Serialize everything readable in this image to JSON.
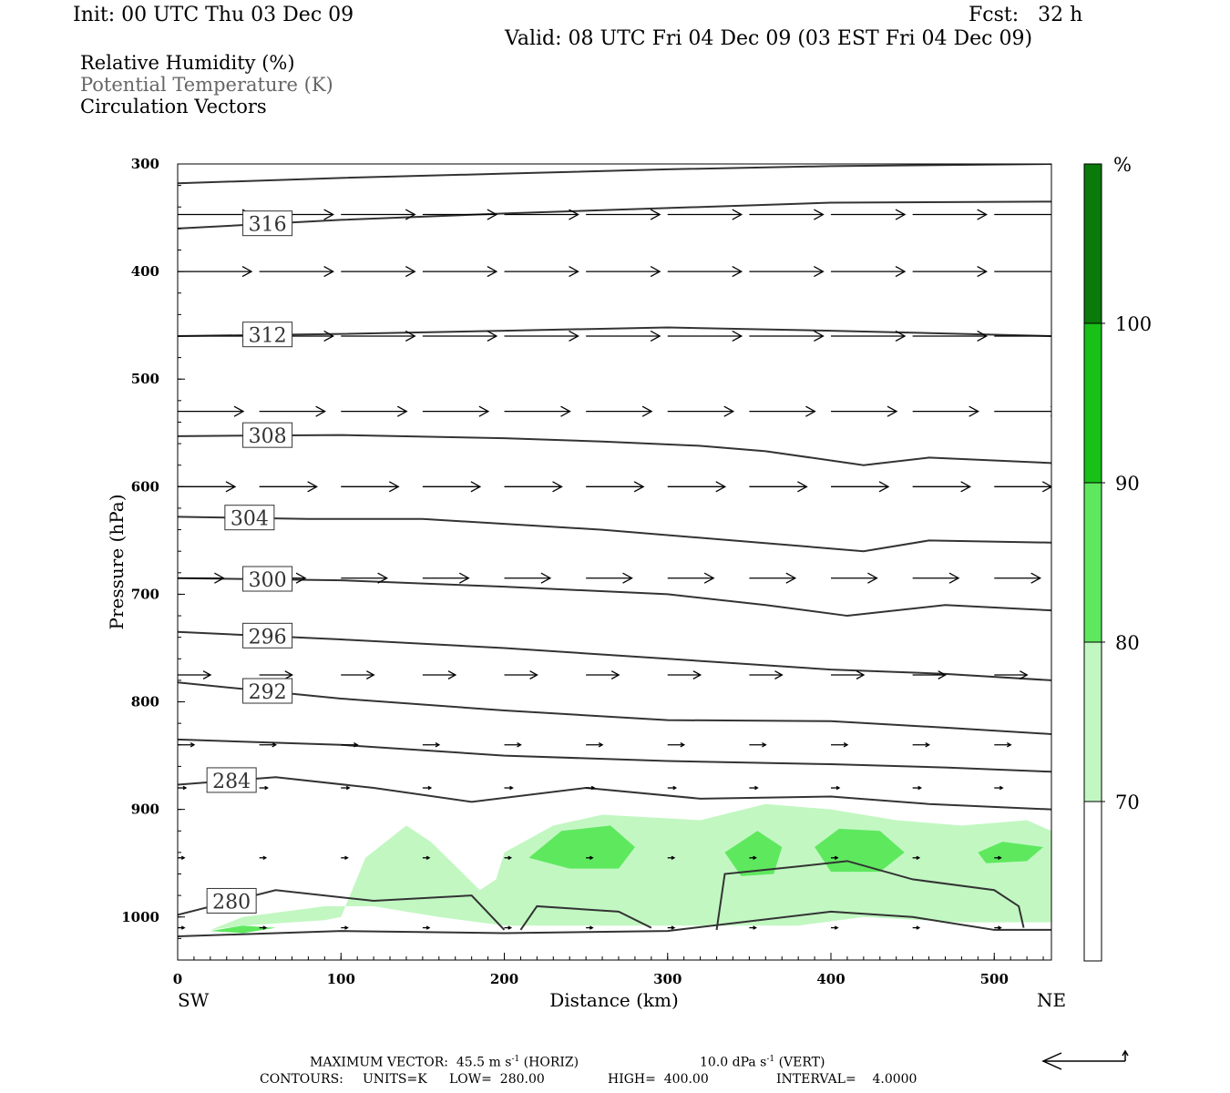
{
  "header": {
    "init": "Init: 00 UTC Thu 03 Dec 09",
    "fcst": "Fcst:   32 h",
    "valid": "Valid: 08 UTC Fri 04 Dec 09 (03 EST Fri 04 Dec 09)"
  },
  "legend": {
    "line1": "Relative Humidity (%)",
    "line2": "Potential Temperature (K)",
    "line3": "Circulation Vectors"
  },
  "footer": {
    "max_vector_label": "MAXIMUM VECTOR:",
    "max_vector_horiz": "45.5 m s",
    "horiz_exp": "-1",
    "horiz_tag": "(HORIZ)",
    "max_vector_vert": "10.0 dPa s",
    "vert_exp": "-1",
    "vert_tag": "(VERT)",
    "contours_label": "CONTOURS:",
    "units": "UNITS=K",
    "low": "LOW=  280.00",
    "high": "HIGH=  400.00",
    "interval": "INTERVAL=    4.0000"
  },
  "colors": {
    "rh_70": "#c2f7c2",
    "rh_80": "#5ee85e",
    "rh_90": "#18c018",
    "rh_100": "#0a7a0a",
    "contour": "#333333",
    "axis": "#000000"
  },
  "chart_data": {
    "type": "cross-section",
    "xlabel": "Distance (km)",
    "ylabel": "Pressure (hPa)",
    "xlim": [
      0,
      535
    ],
    "ylim": [
      1040,
      300
    ],
    "x_ticks": [
      "0",
      "100",
      "200",
      "300",
      "400",
      "500"
    ],
    "x_tick_values": [
      0,
      100,
      200,
      300,
      400,
      500
    ],
    "y_ticks": [
      "300",
      "400",
      "500",
      "600",
      "700",
      "800",
      "900",
      "1000"
    ],
    "y_tick_values": [
      300,
      400,
      500,
      600,
      700,
      800,
      900,
      1000
    ],
    "x_end_labels": {
      "left": "SW",
      "right": "NE"
    },
    "colorbar": {
      "unit": "%",
      "levels": [
        "70",
        "80",
        "90",
        "100"
      ],
      "level_values": [
        70,
        80,
        90,
        100
      ]
    },
    "theta_contours": [
      {
        "label": "316",
        "points": [
          [
            0,
            360
          ],
          [
            100,
            352
          ],
          [
            200,
            346
          ],
          [
            300,
            341
          ],
          [
            400,
            336
          ],
          [
            535,
            335
          ]
        ]
      },
      {
        "label": "",
        "points": [
          [
            0,
            318
          ],
          [
            100,
            313
          ],
          [
            200,
            309
          ],
          [
            300,
            305
          ],
          [
            400,
            302
          ],
          [
            535,
            300
          ]
        ]
      },
      {
        "label": "312",
        "points": [
          [
            0,
            460
          ],
          [
            100,
            458
          ],
          [
            200,
            455
          ],
          [
            300,
            452
          ],
          [
            400,
            455
          ],
          [
            535,
            460
          ]
        ]
      },
      {
        "label": "308",
        "points": [
          [
            0,
            553
          ],
          [
            100,
            552
          ],
          [
            200,
            555
          ],
          [
            260,
            558
          ],
          [
            320,
            562
          ],
          [
            360,
            567
          ],
          [
            420,
            580
          ],
          [
            460,
            573
          ],
          [
            535,
            578
          ]
        ]
      },
      {
        "label": "304",
        "points": [
          [
            0,
            628
          ],
          [
            80,
            630
          ],
          [
            150,
            630
          ],
          [
            260,
            640
          ],
          [
            340,
            650
          ],
          [
            420,
            660
          ],
          [
            460,
            650
          ],
          [
            535,
            652
          ]
        ]
      },
      {
        "label": "300",
        "points": [
          [
            0,
            685
          ],
          [
            100,
            687
          ],
          [
            200,
            693
          ],
          [
            300,
            700
          ],
          [
            360,
            710
          ],
          [
            410,
            720
          ],
          [
            470,
            710
          ],
          [
            535,
            715
          ]
        ]
      },
      {
        "label": "296",
        "points": [
          [
            0,
            735
          ],
          [
            100,
            742
          ],
          [
            200,
            750
          ],
          [
            300,
            760
          ],
          [
            400,
            770
          ],
          [
            470,
            774
          ],
          [
            535,
            780
          ]
        ]
      },
      {
        "label": "292",
        "points": [
          [
            0,
            782
          ],
          [
            100,
            797
          ],
          [
            200,
            808
          ],
          [
            300,
            817
          ],
          [
            400,
            818
          ],
          [
            470,
            824
          ],
          [
            535,
            830
          ]
        ]
      },
      {
        "label": "",
        "points": [
          [
            0,
            835
          ],
          [
            100,
            840
          ],
          [
            200,
            850
          ],
          [
            300,
            855
          ],
          [
            400,
            858
          ],
          [
            470,
            861
          ],
          [
            535,
            865
          ]
        ]
      },
      {
        "label": "284",
        "points": [
          [
            0,
            877
          ],
          [
            60,
            870
          ],
          [
            120,
            880
          ],
          [
            180,
            893
          ],
          [
            250,
            880
          ],
          [
            320,
            890
          ],
          [
            400,
            888
          ],
          [
            460,
            895
          ],
          [
            535,
            900
          ]
        ]
      },
      {
        "label": "280",
        "points": [
          [
            0,
            998
          ],
          [
            60,
            975
          ],
          [
            120,
            985
          ],
          [
            180,
            980
          ],
          [
            200,
            1012
          ]
        ]
      },
      {
        "label": "",
        "points": [
          [
            210,
            1012
          ],
          [
            220,
            990
          ],
          [
            270,
            995
          ],
          [
            290,
            1010
          ]
        ]
      },
      {
        "label": "",
        "points": [
          [
            330,
            1012
          ],
          [
            335,
            960
          ],
          [
            380,
            953
          ],
          [
            410,
            948
          ],
          [
            450,
            965
          ],
          [
            500,
            975
          ],
          [
            515,
            990
          ],
          [
            518,
            1010
          ]
        ]
      },
      {
        "label": "",
        "points": [
          [
            0,
            1018
          ],
          [
            100,
            1013
          ],
          [
            200,
            1015
          ],
          [
            300,
            1013
          ],
          [
            400,
            995
          ],
          [
            450,
            1000
          ],
          [
            500,
            1012
          ],
          [
            535,
            1012
          ]
        ]
      }
    ],
    "rh_regions": [
      {
        "level": 70,
        "points": [
          [
            100,
            1000
          ],
          [
            115,
            945
          ],
          [
            140,
            915
          ],
          [
            155,
            930
          ],
          [
            175,
            960
          ],
          [
            185,
            975
          ],
          [
            195,
            965
          ],
          [
            200,
            940
          ],
          [
            230,
            915
          ],
          [
            260,
            905
          ],
          [
            320,
            910
          ],
          [
            360,
            895
          ],
          [
            400,
            900
          ],
          [
            440,
            910
          ],
          [
            480,
            915
          ],
          [
            520,
            910
          ],
          [
            535,
            920
          ],
          [
            535,
            1005
          ],
          [
            480,
            1005
          ],
          [
            420,
            1000
          ],
          [
            380,
            1008
          ],
          [
            200,
            1008
          ],
          [
            160,
            1000
          ],
          [
            120,
            990
          ],
          [
            90,
            990
          ],
          [
            40,
            1000
          ],
          [
            20,
            1012
          ],
          [
            40,
            1008
          ],
          [
            90,
            1003
          ]
        ]
      },
      {
        "level": 80,
        "points": [
          [
            215,
            945
          ],
          [
            235,
            920
          ],
          [
            265,
            915
          ],
          [
            280,
            935
          ],
          [
            270,
            955
          ],
          [
            240,
            955
          ]
        ]
      },
      {
        "level": 80,
        "points": [
          [
            335,
            940
          ],
          [
            355,
            920
          ],
          [
            370,
            935
          ],
          [
            365,
            960
          ],
          [
            345,
            962
          ]
        ]
      },
      {
        "level": 80,
        "points": [
          [
            390,
            935
          ],
          [
            405,
            918
          ],
          [
            430,
            920
          ],
          [
            445,
            940
          ],
          [
            430,
            958
          ],
          [
            400,
            958
          ]
        ]
      },
      {
        "level": 80,
        "points": [
          [
            490,
            940
          ],
          [
            505,
            930
          ],
          [
            530,
            935
          ],
          [
            520,
            948
          ],
          [
            495,
            950
          ]
        ]
      },
      {
        "level": 80,
        "points": [
          [
            20,
            1013
          ],
          [
            40,
            1008
          ],
          [
            60,
            1010
          ],
          [
            40,
            1015
          ]
        ]
      }
    ],
    "vectors": [
      {
        "p": 347,
        "x": [
          0,
          50,
          100,
          150,
          200,
          250,
          300,
          350,
          400,
          450,
          500,
          535
        ],
        "u": [
          45,
          45,
          45,
          45,
          45,
          45,
          45,
          45,
          45,
          45,
          45,
          45
        ],
        "w": [
          0,
          0,
          0,
          0,
          0,
          0,
          0,
          0,
          0,
          0,
          0,
          0
        ]
      },
      {
        "p": 400,
        "x": [
          0,
          50,
          100,
          150,
          200,
          250,
          300,
          350,
          400,
          450,
          500,
          535
        ],
        "u": [
          45,
          45,
          45,
          45,
          45,
          45,
          45,
          45,
          45,
          45,
          45,
          45
        ],
        "w": [
          0,
          0,
          0,
          0,
          0,
          0,
          0,
          0,
          0,
          0,
          0,
          0
        ]
      },
      {
        "p": 460,
        "x": [
          0,
          50,
          100,
          150,
          200,
          250,
          300,
          350,
          400,
          450,
          500,
          535
        ],
        "u": [
          45,
          45,
          45,
          45,
          45,
          45,
          45,
          45,
          45,
          45,
          45,
          45
        ],
        "w": [
          0,
          0,
          0,
          0,
          0,
          0,
          0,
          0,
          0,
          0,
          0,
          0
        ]
      },
      {
        "p": 530,
        "x": [
          0,
          50,
          100,
          150,
          200,
          250,
          300,
          350,
          400,
          450,
          500,
          535
        ],
        "u": [
          40,
          40,
          40,
          40,
          40,
          40,
          40,
          40,
          40,
          40,
          40,
          40
        ],
        "w": [
          0,
          0,
          0,
          0,
          0,
          0,
          0,
          0,
          0,
          0,
          0,
          0
        ]
      },
      {
        "p": 600,
        "x": [
          0,
          50,
          100,
          150,
          200,
          250,
          300,
          350,
          400,
          450,
          500,
          535
        ],
        "u": [
          35,
          35,
          35,
          35,
          35,
          35,
          35,
          35,
          35,
          35,
          35,
          35
        ],
        "w": [
          0,
          0,
          0,
          0,
          0,
          0,
          0,
          0,
          0,
          0,
          0,
          0
        ]
      },
      {
        "p": 685,
        "x": [
          0,
          50,
          100,
          150,
          200,
          250,
          300,
          350,
          400,
          450,
          500,
          535
        ],
        "u": [
          28,
          28,
          28,
          28,
          28,
          28,
          28,
          28,
          28,
          28,
          28,
          28
        ],
        "w": [
          0,
          0,
          0,
          0,
          0,
          0,
          0,
          0,
          0,
          0,
          0,
          0
        ]
      },
      {
        "p": 775,
        "x": [
          0,
          50,
          100,
          150,
          200,
          250,
          300,
          350,
          400,
          450,
          500,
          535
        ],
        "u": [
          20,
          20,
          20,
          20,
          20,
          20,
          20,
          20,
          20,
          20,
          20,
          20
        ],
        "w": [
          0,
          0,
          0,
          0,
          0,
          0,
          0,
          0,
          0,
          0,
          0,
          0
        ]
      },
      {
        "p": 840,
        "x": [
          0,
          50,
          100,
          150,
          200,
          250,
          300,
          350,
          400,
          450,
          500,
          535
        ],
        "u": [
          10,
          10,
          10,
          10,
          10,
          10,
          10,
          10,
          10,
          10,
          10,
          10
        ],
        "w": [
          0,
          0,
          0,
          0,
          0,
          0,
          0,
          0,
          0,
          0,
          0,
          0
        ]
      },
      {
        "p": 880,
        "x": [
          0,
          50,
          100,
          150,
          200,
          250,
          300,
          350,
          400,
          450,
          500,
          535
        ],
        "u": [
          5,
          5,
          5,
          5,
          5,
          5,
          5,
          5,
          5,
          5,
          5,
          5
        ],
        "w": [
          0,
          0,
          0,
          0,
          0,
          0,
          0,
          0,
          0,
          0,
          0,
          0
        ]
      },
      {
        "p": 945,
        "x": [
          0,
          50,
          100,
          150,
          200,
          250,
          300,
          350,
          400,
          450,
          500,
          535
        ],
        "u": [
          4,
          4,
          4,
          4,
          4,
          4,
          4,
          4,
          4,
          4,
          4,
          4
        ],
        "w": [
          0,
          0,
          0,
          0,
          0,
          0,
          0,
          0,
          0,
          0,
          0,
          0
        ]
      },
      {
        "p": 1010,
        "x": [
          0,
          50,
          100,
          150,
          200,
          250,
          300,
          350,
          400,
          450,
          500,
          535
        ],
        "u": [
          4,
          4,
          4,
          4,
          4,
          4,
          4,
          4,
          4,
          4,
          4,
          4
        ],
        "w": [
          0,
          0,
          0,
          0,
          0,
          0,
          0,
          0,
          0,
          0,
          0,
          0
        ]
      }
    ]
  }
}
